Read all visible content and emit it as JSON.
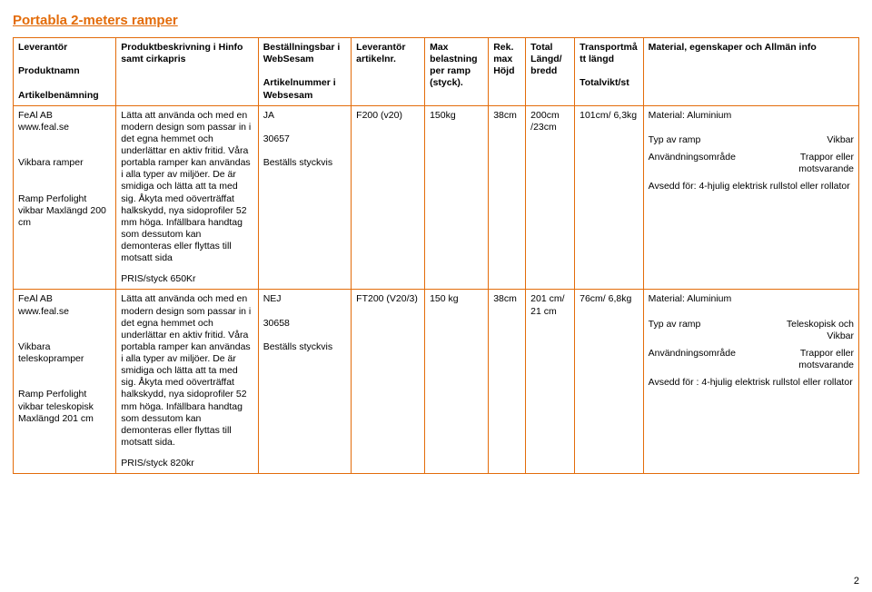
{
  "title": "Portabla 2-meters ramper",
  "page_number": "2",
  "col_widths": [
    "105",
    "145",
    "95",
    "75",
    "65",
    "38",
    "50",
    "70",
    "220"
  ],
  "columns": [
    "Leverantör\n\nProduktnamn\n\nArtikelbenämning",
    "Produktbeskrivning i Hinfo samt cirkapris",
    "Beställningsbar i WebSesam\n\nArtikelnummer i Websesam",
    "Leverantör artikelnr.",
    "Max belastning per ramp (styck).",
    "Rek. max Höjd",
    "Total Längd/ bredd",
    "Transportmått längd\n\nTotalvikt/st",
    "Material, egenskaper och Allmän info"
  ],
  "rows": [
    {
      "c0": "FeAl AB\nwww.feal.se\n\n\nVikbara ramper\n\n\nRamp Perfolight vikbar Maxlängd 200 cm",
      "c1_body": "Lätta att använda och med en modern design som passar in i det egna hemmet och underlättar en aktiv fritid. Våra portabla ramper kan användas i alla typer av miljöer. De är smidiga och lätta att ta med sig. Åkyta med oöverträffat halkskydd, nya sidoprofiler 52 mm höga. Infällbara handtag som dessutom kan demonteras eller flyttas till motsatt sida",
      "c1_price": "PRIS/styck 650Kr",
      "c2": "JA\n\n30657\n\nBeställs styckvis",
      "c3": "F200 (v20)",
      "c4": "150kg",
      "c5": "38cm",
      "c6": "200cm /23cm",
      "c7": "101cm/ 6,3kg",
      "c8_material": "Material: Aluminium",
      "c8_typ_label": "Typ av ramp",
      "c8_typ_value": "Vikbar",
      "c8_area_label": "Användningsområde",
      "c8_area_value": "Trappor eller motsvarande",
      "c8_avs": "Avsedd för: 4-hjulig elektrisk  rullstol eller rollator"
    },
    {
      "c0": "FeAl  AB\nwww.feal.se\n\n\nVikbara teleskopramper\n\n\nRamp Perfolight vikbar teleskopisk Maxlängd 201 cm",
      "c1_body": "Lätta att använda och med en modern design som passar in i det egna hemmet och underlättar en aktiv fritid. Våra portabla ramper kan användas i alla typer av miljöer. De är smidiga och lätta att ta med sig. Åkyta med oöverträffat halkskydd, nya sidoprofiler 52 mm höga. Infällbara handtag som dessutom kan demonteras eller flyttas till motsatt sida.",
      "c1_price": "PRIS/styck 820kr",
      "c2": "NEJ\n\n30658\n\nBeställs styckvis",
      "c3": "FT200 (V20/3)",
      "c4": "150 kg",
      "c5": "38cm",
      "c6": "201 cm/ 21 cm",
      "c7": "76cm/ 6,8kg",
      "c8_material": "Material: Aluminium",
      "c8_typ_label": "Typ av ramp",
      "c8_typ_value": "Teleskopisk och Vikbar",
      "c8_area_label": "Användningsområde",
      "c8_area_value": "Trappor eller motsvarande",
      "c8_avs": "Avsedd för : 4-hjulig elektrisk rullstol eller rollator"
    }
  ]
}
